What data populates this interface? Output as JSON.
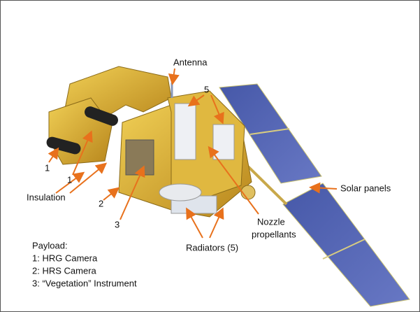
{
  "labels": {
    "antenna": "Antenna",
    "radiators_top": "5",
    "hrg": "1",
    "hrs": "1",
    "insulation": "Insulation",
    "camera2": "2",
    "camera3": "3",
    "nozzle": [
      "Nozzle",
      "propellants"
    ],
    "radiators": "Radiators (5)",
    "solar_panels": "Solar panels"
  },
  "payload": {
    "title": "Payload:",
    "items": [
      "1: HRG Camera",
      "2: HRS Camera",
      "3: “Vegetation” Instrument"
    ]
  }
}
